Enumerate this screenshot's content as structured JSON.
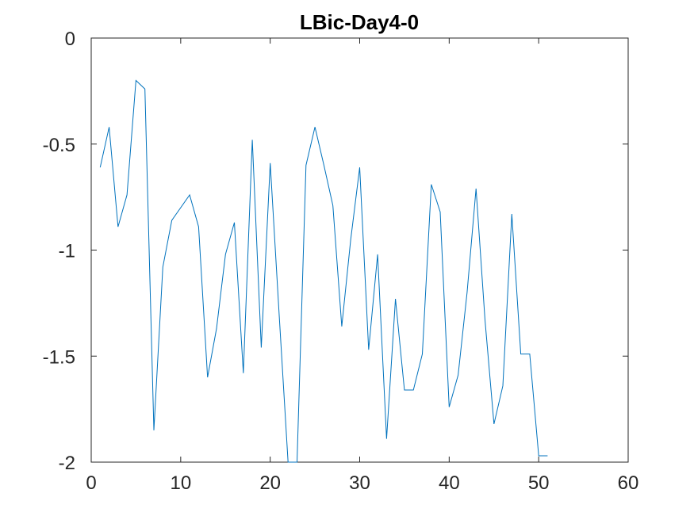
{
  "chart_data": {
    "type": "line",
    "title": "LBic-Day4-0",
    "xlabel": "",
    "ylabel": "",
    "xlim": [
      0,
      60
    ],
    "ylim": [
      -2,
      0
    ],
    "xticks": [
      0,
      10,
      20,
      30,
      40,
      50,
      60
    ],
    "xtick_labels": [
      "0",
      "10",
      "20",
      "30",
      "40",
      "50",
      "60"
    ],
    "yticks": [
      0,
      -0.5,
      -1,
      -1.5,
      -2
    ],
    "ytick_labels": [
      "0",
      "-0.5",
      "-1",
      "-1.5",
      "-2"
    ],
    "grid": false,
    "line_color": "#0072BD",
    "series": [
      {
        "x": [
          1,
          2,
          3,
          4,
          5,
          6,
          7,
          8,
          9,
          10,
          11,
          12,
          13,
          14,
          15,
          16,
          17,
          18,
          19,
          20,
          21,
          22,
          23,
          24,
          25,
          26,
          27,
          28,
          29,
          30,
          31,
          32,
          33,
          34,
          35,
          36,
          37,
          38,
          39,
          40,
          41,
          42,
          43,
          44,
          45,
          46,
          47,
          48,
          49,
          50,
          51
        ],
        "values": [
          -0.61,
          -0.42,
          -0.89,
          -0.74,
          -0.2,
          -0.24,
          -1.85,
          -1.08,
          -0.86,
          -0.8,
          -0.74,
          -0.89,
          -1.6,
          -1.37,
          -1.02,
          -0.87,
          -1.58,
          -0.48,
          -1.46,
          -0.59,
          -1.3,
          -2.0,
          -2.0,
          -0.6,
          -0.42,
          -0.6,
          -0.79,
          -1.36,
          -0.95,
          -0.61,
          -1.47,
          -1.02,
          -1.89,
          -1.23,
          -1.66,
          -1.66,
          -1.49,
          -0.69,
          -0.82,
          -1.74,
          -1.59,
          -1.2,
          -0.71,
          -1.33,
          -1.82,
          -1.64,
          -0.83,
          -1.49,
          -1.49,
          -1.97,
          -1.97
        ]
      }
    ]
  }
}
